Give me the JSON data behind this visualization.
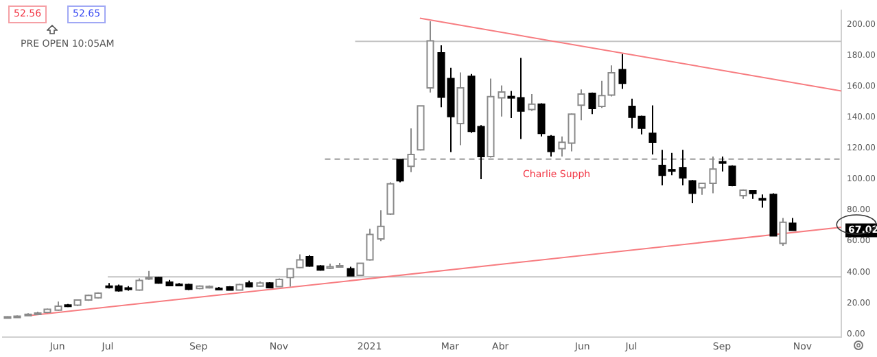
{
  "chart_data": {
    "type": "candlestick",
    "x": [
      "2020-04-27",
      "2020-05-04",
      "2020-05-11",
      "2020-05-18",
      "2020-05-25",
      "2020-06-01",
      "2020-06-08",
      "2020-06-15",
      "2020-06-22",
      "2020-06-29",
      "2020-07-06",
      "2020-07-13",
      "2020-07-20",
      "2020-07-27",
      "2020-08-03",
      "2020-08-10",
      "2020-08-17",
      "2020-08-24",
      "2020-08-31",
      "2020-09-07",
      "2020-09-14",
      "2020-09-21",
      "2020-09-28",
      "2020-10-05",
      "2020-10-12",
      "2020-10-19",
      "2020-10-26",
      "2020-11-02",
      "2020-11-09",
      "2020-11-16",
      "2020-11-23",
      "2020-11-30",
      "2020-12-07",
      "2020-12-14",
      "2020-12-21",
      "2020-12-28",
      "2021-01-04",
      "2021-01-11",
      "2021-01-18",
      "2021-01-25",
      "2021-02-01",
      "2021-02-08",
      "2021-02-15",
      "2021-02-22",
      "2021-03-01",
      "2021-03-08",
      "2021-03-15",
      "2021-03-22",
      "2021-03-29",
      "2021-04-05",
      "2021-04-12",
      "2021-04-19",
      "2021-04-26",
      "2021-05-03",
      "2021-05-10",
      "2021-05-17",
      "2021-05-24",
      "2021-05-31",
      "2021-06-07",
      "2021-06-14",
      "2021-06-21",
      "2021-06-28",
      "2021-07-05",
      "2021-07-12",
      "2021-07-19",
      "2021-07-26",
      "2021-08-02",
      "2021-08-09",
      "2021-08-16",
      "2021-08-23",
      "2021-08-30",
      "2021-09-06",
      "2021-09-13",
      "2021-09-20",
      "2021-09-27",
      "2021-10-04",
      "2021-10-11",
      "2021-10-18",
      "2021-10-25"
    ],
    "ohlc": [
      [
        10.8,
        11.5,
        10.5,
        11.2
      ],
      [
        11.2,
        12,
        11,
        11.6
      ],
      [
        12,
        13.5,
        11.8,
        12.8
      ],
      [
        13,
        14.5,
        12.5,
        13.6
      ],
      [
        14,
        16.5,
        13.5,
        16
      ],
      [
        15.5,
        21,
        15,
        18
      ],
      [
        18.8,
        19.5,
        17.5,
        18.3
      ],
      [
        18.7,
        22.5,
        18,
        22
      ],
      [
        22,
        25.5,
        21.5,
        25
      ],
      [
        23.5,
        27,
        23,
        26.5
      ],
      [
        31,
        33,
        29.5,
        30.5
      ],
      [
        31,
        32,
        27.5,
        28
      ],
      [
        29.8,
        31,
        28,
        29.5
      ],
      [
        28.5,
        36,
        28,
        34.7
      ],
      [
        36,
        40.7,
        35,
        36.5
      ],
      [
        36.5,
        37,
        32.5,
        33
      ],
      [
        33.6,
        35,
        31,
        31.3
      ],
      [
        32.2,
        33,
        31.5,
        32
      ],
      [
        32,
        32.5,
        28.5,
        29
      ],
      [
        29.5,
        31.5,
        29,
        31
      ],
      [
        30.5,
        31.5,
        29.5,
        30.8
      ],
      [
        29.6,
        30.5,
        28.8,
        29.5
      ],
      [
        30.5,
        31,
        28.3,
        28.5
      ],
      [
        28.5,
        32.5,
        28.3,
        32
      ],
      [
        33,
        34.5,
        30.3,
        30.7
      ],
      [
        31,
        34,
        30.8,
        33
      ],
      [
        33,
        33.5,
        30,
        30
      ],
      [
        30.7,
        36,
        30.5,
        35.3
      ],
      [
        36.5,
        42.5,
        30.7,
        42.2
      ],
      [
        43,
        51.5,
        42.5,
        48
      ],
      [
        50,
        51,
        43.5,
        44
      ],
      [
        44,
        44.5,
        41,
        41.4
      ],
      [
        42.5,
        45.5,
        42,
        43.5
      ],
      [
        43.8,
        46,
        43,
        44.2
      ],
      [
        42.2,
        43.5,
        37.5,
        37.7
      ],
      [
        38,
        46,
        37.8,
        45.7
      ],
      [
        48,
        68,
        47.5,
        64.4
      ],
      [
        61.5,
        80,
        60,
        69.6
      ],
      [
        77.6,
        98,
        77,
        97
      ],
      [
        112.7,
        113,
        98,
        99
      ],
      [
        108.3,
        132.8,
        104.6,
        116
      ],
      [
        119,
        147.5,
        118.5,
        147.4
      ],
      [
        159,
        202,
        156,
        189.4
      ],
      [
        181.6,
        186.5,
        146.5,
        153
      ],
      [
        165,
        172,
        117.5,
        140.5
      ],
      [
        136,
        169,
        122,
        159
      ],
      [
        166.4,
        168,
        130,
        131
      ],
      [
        134,
        135,
        100,
        114.7
      ],
      [
        114.7,
        165,
        114,
        153.4
      ],
      [
        152.6,
        160.6,
        140.5,
        156.3
      ],
      [
        153.4,
        157,
        139.5,
        152.6
      ],
      [
        152.6,
        178.4,
        126,
        144
      ],
      [
        145,
        155,
        144,
        148.5
      ],
      [
        148.5,
        149,
        127.6,
        129.6
      ],
      [
        127.6,
        128.5,
        114.7,
        118
      ],
      [
        119.8,
        127.6,
        114.7,
        123.9
      ],
      [
        123.3,
        142.5,
        118,
        142
      ],
      [
        147.8,
        158,
        138,
        155
      ],
      [
        155.4,
        156,
        142,
        145.7
      ],
      [
        147,
        163.5,
        146,
        154
      ],
      [
        154.3,
        173.5,
        153.5,
        168.7
      ],
      [
        170.7,
        180.8,
        158.3,
        162
      ],
      [
        147,
        152,
        133,
        140
      ],
      [
        140.5,
        141,
        129,
        133
      ],
      [
        129.6,
        147.7,
        116,
        124
      ],
      [
        108.9,
        119,
        96,
        102.6
      ],
      [
        106.2,
        117,
        102.6,
        105.9
      ],
      [
        107.5,
        119,
        96,
        100.9
      ],
      [
        98.9,
        99.5,
        84.5,
        91
      ],
      [
        94.5,
        97.5,
        90,
        97.4
      ],
      [
        97.4,
        114.7,
        91,
        106.6
      ],
      [
        111.3,
        114.7,
        105,
        110.7
      ],
      [
        108.4,
        109,
        95.5,
        96
      ],
      [
        89.4,
        93.5,
        87.3,
        93
      ],
      [
        92.5,
        93,
        87.3,
        90.8
      ],
      [
        87.5,
        90.2,
        81.6,
        87.2
      ],
      [
        90.2,
        91,
        63.5,
        63.5
      ],
      [
        58.6,
        75,
        57,
        72.2
      ],
      [
        71.6,
        75,
        67,
        67.02
      ]
    ],
    "series": [
      {
        "type": "line",
        "color": "#f77c80",
        "x": [
          "2021-02-08",
          "2021-11-28"
        ],
        "values": [
          204,
          157
        ]
      },
      {
        "type": "line",
        "color": "#f77c80",
        "x": [
          "2020-05-13",
          "2021-11-28"
        ],
        "values": [
          12,
          69
        ]
      },
      {
        "type": "line",
        "color": "#c3c3c3",
        "x": [
          "2020-12-25",
          "2021-11-28"
        ],
        "values": [
          189,
          189
        ]
      },
      {
        "type": "line",
        "color": "#c3c3c3",
        "x": [
          "2020-07-06",
          "2021-11-28"
        ],
        "values": [
          37,
          37
        ]
      },
      {
        "type": "line",
        "color": "#9a9a9a",
        "line_style": "dashed",
        "x": [
          "2020-12-04",
          "2021-11-28"
        ],
        "values": [
          113,
          113
        ]
      }
    ],
    "xlim": [
      "2020-04-24",
      "2021-11-28"
    ],
    "xticks": [
      {
        "value": "2020-06-01",
        "label": "Jun"
      },
      {
        "value": "2020-07-06",
        "label": "Jul"
      },
      {
        "value": "2020-09-07",
        "label": "Sep"
      },
      {
        "value": "2020-11-02",
        "label": "Nov"
      },
      {
        "value": "2021-01-04",
        "label": "2021"
      },
      {
        "value": "2021-03-01",
        "label": "Mar"
      },
      {
        "value": "2021-04-05",
        "label": "Abr"
      },
      {
        "value": "2021-06-01",
        "label": "Jun"
      },
      {
        "value": "2021-07-05",
        "label": "Jul"
      },
      {
        "value": "2021-09-06",
        "label": "Sep"
      },
      {
        "value": "2021-11-01",
        "label": "Nov"
      }
    ],
    "ylim": [
      -2,
      209
    ],
    "yticks": [
      {
        "value": 0,
        "label": "0.00"
      },
      {
        "value": 20,
        "label": "20.00"
      },
      {
        "value": 40,
        "label": "40.00"
      },
      {
        "value": 60,
        "label": "60.00"
      },
      {
        "value": 80,
        "label": "80.00"
      },
      {
        "value": 100,
        "label": "100.00"
      },
      {
        "value": 120,
        "label": "120.00"
      },
      {
        "value": 140,
        "label": "140.00"
      },
      {
        "value": 160,
        "label": "160.00"
      },
      {
        "value": 180,
        "label": "180.00"
      },
      {
        "value": 200,
        "label": "200.00"
      }
    ],
    "annotations": [
      "52.56",
      "52.65",
      "PRE OPEN 10:05AM",
      "Charlie Supph",
      {
        "text": "67.02",
        "y": 67.02
      }
    ]
  }
}
